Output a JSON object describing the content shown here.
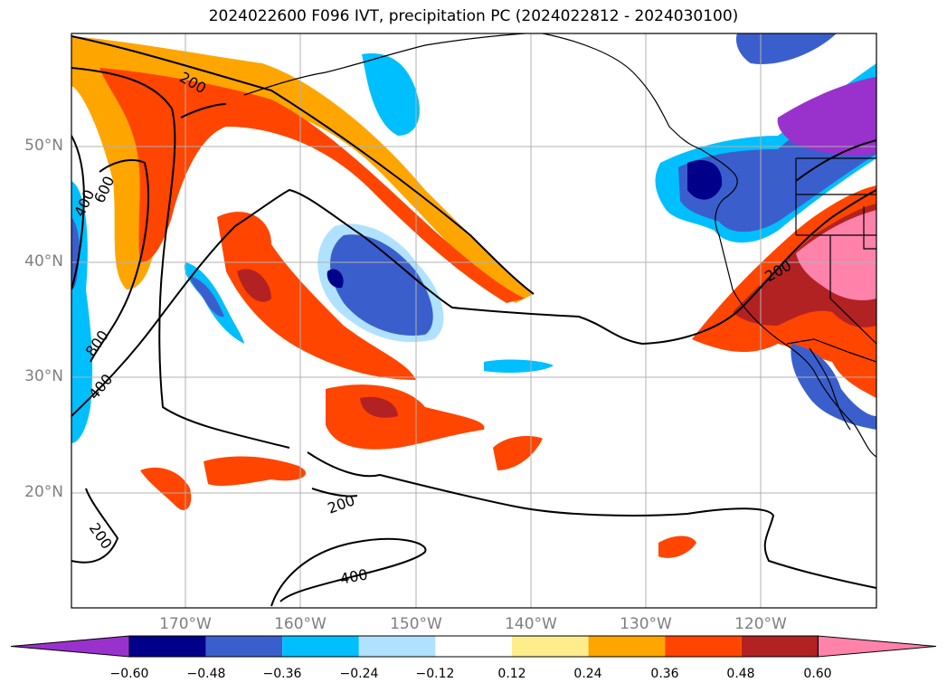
{
  "title": "2024022600 F096 IVT, precipitation PC (2024022812 - 2024030100)",
  "lat_labels": [
    "50°N",
    "40°N",
    "30°N",
    "20°N"
  ],
  "lon_labels": [
    "170°W",
    "160°W",
    "150°W",
    "140°W",
    "130°W",
    "120°W"
  ],
  "contour_labels": [
    "200",
    "200",
    "200",
    "200",
    "400",
    "400",
    "400",
    "600",
    "800"
  ],
  "colorbar": {
    "ticks": [
      "−0.60",
      "−0.48",
      "−0.36",
      "−0.24",
      "−0.12",
      "0.12",
      "0.24",
      "0.36",
      "0.48",
      "0.60"
    ],
    "colors": [
      "#9932cc",
      "#00008b",
      "#3a5fcd",
      "#00bfff",
      "#b0e2ff",
      "#ffffff",
      "#ffec8b",
      "#ffa500",
      "#ff4500",
      "#b22222",
      "#ff82ab"
    ]
  },
  "colors": {
    "frame": "#000000",
    "grid": "#b0b0b0",
    "label_gray": "#7f7f7f"
  }
}
